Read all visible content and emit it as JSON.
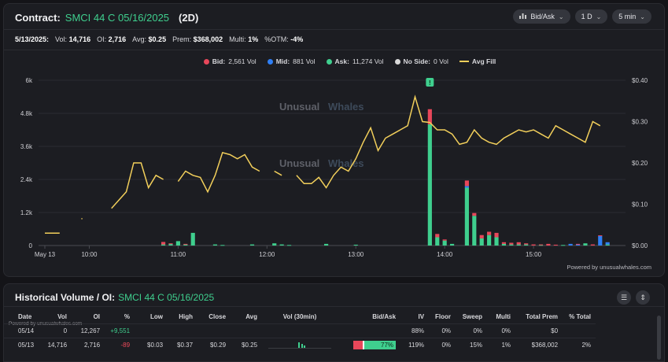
{
  "header": {
    "label": "Contract:",
    "contract": "SMCI 44 C 05/16/2025",
    "span": "(2D)",
    "controls": [
      {
        "label": "Bid/Ask",
        "icon": "bar-chart-icon"
      },
      {
        "label": "1 D",
        "icon": ""
      },
      {
        "label": "5 min",
        "icon": ""
      }
    ]
  },
  "stats": {
    "date": "5/13/2025:",
    "vol_label": "Vol:",
    "vol": "14,716",
    "oi_label": "OI:",
    "oi": "2,716",
    "avg_label": "Avg:",
    "avg": "$0.25",
    "prem_label": "Prem:",
    "prem": "$368,002",
    "multi_label": "Multi:",
    "multi": "1%",
    "otm_label": "%OTM:",
    "otm": "-4%"
  },
  "legend": {
    "bid": "Bid:",
    "bid_val": "2,561 Vol",
    "mid": "Mid:",
    "mid_val": "881 Vol",
    "ask": "Ask:",
    "ask_val": "11,274 Vol",
    "noside": "No Side:",
    "noside_val": "0 Vol",
    "avgfill": "Avg Fill"
  },
  "colors": {
    "bid": "#e8475a",
    "mid": "#2f7ff5",
    "ask": "#3fcf8e",
    "noside": "#d9d9d9",
    "avgfill": "#f2cf5b"
  },
  "watermark": {
    "a": "Unusual",
    "b": "Whales"
  },
  "powered": "Powered by unusualwhales.com",
  "chart_data": {
    "type": "bar",
    "left_axis": {
      "ticks": [
        "6k",
        "4.8k",
        "3.6k",
        "2.4k",
        "1.2k",
        "0"
      ],
      "values": [
        6000,
        4800,
        3600,
        2400,
        1200,
        0
      ]
    },
    "right_axis": {
      "ticks": [
        "$0.40",
        "$0.30",
        "$0.20",
        "$0.10",
        "$0.00"
      ],
      "values": [
        0.4,
        0.3,
        0.2,
        0.1,
        0.0
      ]
    },
    "x_ticks": [
      {
        "label": "May 13",
        "bar": 0
      },
      {
        "label": "10:00",
        "bar": 6
      },
      {
        "label": "11:00",
        "bar": 18
      },
      {
        "label": "12:00",
        "bar": 30
      },
      {
        "label": "13:00",
        "bar": 42
      },
      {
        "label": "14:00",
        "bar": 54
      },
      {
        "label": "15:00",
        "bar": 66
      }
    ],
    "bar_count": 78,
    "bars": [
      {
        "i": 16,
        "ask": 40,
        "bid": 90
      },
      {
        "i": 17,
        "ask": 60,
        "bid": 20
      },
      {
        "i": 18,
        "ask": 160
      },
      {
        "i": 19,
        "ask": 40,
        "bid": 20
      },
      {
        "i": 20,
        "ask": 460
      },
      {
        "i": 23,
        "ask": 40
      },
      {
        "i": 24,
        "ask": 20
      },
      {
        "i": 28,
        "ask": 40
      },
      {
        "i": 31,
        "ask": 80
      },
      {
        "i": 32,
        "ask": 40
      },
      {
        "i": 33,
        "ask": 20
      },
      {
        "i": 38,
        "ask": 60
      },
      {
        "i": 42,
        "ask": 30
      },
      {
        "i": 52,
        "ask": 4400,
        "bid": 550,
        "noside": 0
      },
      {
        "i": 53,
        "ask": 300,
        "bid": 120
      },
      {
        "i": 54,
        "ask": 180,
        "bid": 40
      },
      {
        "i": 55,
        "ask": 60
      },
      {
        "i": 57,
        "ask": 2100,
        "bid": 200,
        "mid": 60
      },
      {
        "i": 58,
        "ask": 1080,
        "bid": 100
      },
      {
        "i": 59,
        "ask": 260,
        "bid": 120
      },
      {
        "i": 60,
        "ask": 380,
        "bid": 120
      },
      {
        "i": 61,
        "ask": 300,
        "bid": 160
      },
      {
        "i": 62,
        "ask": 60,
        "bid": 60
      },
      {
        "i": 63,
        "ask": 40,
        "bid": 60
      },
      {
        "i": 64,
        "ask": 40,
        "bid": 80
      },
      {
        "i": 65,
        "ask": 40,
        "bid": 40
      },
      {
        "i": 66,
        "bid": 40
      },
      {
        "i": 67,
        "ask": 20,
        "bid": 20
      },
      {
        "i": 68,
        "bid": 60
      },
      {
        "i": 69,
        "bid": 30
      },
      {
        "i": 70,
        "ask": 20
      },
      {
        "i": 71,
        "mid": 60
      },
      {
        "i": 72,
        "bid": 20,
        "mid": 40
      },
      {
        "i": 73,
        "ask": 80
      },
      {
        "i": 74,
        "bid": 40
      },
      {
        "i": 75,
        "mid": 350,
        "bid": 20
      },
      {
        "i": 76,
        "mid": 80,
        "ask": 40
      }
    ],
    "avg_fill": [
      [
        0,
        0.03
      ],
      [
        1,
        0.03
      ],
      [
        2,
        0.03
      ],
      [
        9,
        0.09
      ],
      [
        10,
        0.11
      ],
      [
        11,
        0.13
      ],
      [
        12,
        0.2
      ],
      [
        13,
        0.2
      ],
      [
        14,
        0.14
      ],
      [
        15,
        0.17
      ],
      [
        16,
        0.16
      ],
      [
        18,
        0.155
      ],
      [
        19,
        0.18
      ],
      [
        20,
        0.17
      ],
      [
        21,
        0.165
      ],
      [
        22,
        0.13
      ],
      [
        23,
        0.17
      ],
      [
        24,
        0.225
      ],
      [
        25,
        0.22
      ],
      [
        26,
        0.21
      ],
      [
        27,
        0.22
      ],
      [
        28,
        0.19
      ],
      [
        29,
        0.18
      ],
      [
        31,
        0.18
      ],
      [
        32,
        0.17
      ],
      [
        34,
        0.17
      ],
      [
        35,
        0.15
      ],
      [
        36,
        0.15
      ],
      [
        37,
        0.165
      ],
      [
        38,
        0.14
      ],
      [
        39,
        0.17
      ],
      [
        40,
        0.19
      ],
      [
        41,
        0.18
      ],
      [
        42,
        0.21
      ],
      [
        43,
        0.25
      ],
      [
        44,
        0.285
      ],
      [
        45,
        0.23
      ],
      [
        46,
        0.26
      ],
      [
        47,
        0.27
      ],
      [
        48,
        0.28
      ],
      [
        49,
        0.29
      ],
      [
        50,
        0.36
      ],
      [
        51,
        0.3
      ],
      [
        52,
        0.298
      ],
      [
        53,
        0.28
      ],
      [
        54,
        0.28
      ],
      [
        55,
        0.27
      ],
      [
        56,
        0.245
      ],
      [
        57,
        0.25
      ],
      [
        58,
        0.28
      ],
      [
        59,
        0.26
      ],
      [
        60,
        0.25
      ],
      [
        61,
        0.245
      ],
      [
        62,
        0.26
      ],
      [
        63,
        0.27
      ],
      [
        64,
        0.28
      ],
      [
        65,
        0.275
      ],
      [
        66,
        0.28
      ],
      [
        67,
        0.27
      ],
      [
        68,
        0.26
      ],
      [
        69,
        0.29
      ],
      [
        70,
        0.28
      ],
      [
        71,
        0.27
      ],
      [
        72,
        0.26
      ],
      [
        73,
        0.25
      ],
      [
        74,
        0.3
      ],
      [
        75,
        0.29
      ]
    ],
    "marker": {
      "i": 52,
      "label": "!"
    }
  },
  "history": {
    "title": "Historical Volume / OI:",
    "contract": "SMCI 44 C 05/16/2025",
    "watermark": "Powered by unusualwhales.com",
    "columns": [
      "Date",
      "Vol",
      "OI",
      "%",
      "Low",
      "High",
      "Close",
      "Avg",
      "Vol (30min)",
      "Bid/Ask",
      "IV",
      "Floor",
      "Sweep",
      "Multi",
      "Total Prem",
      "% Total"
    ],
    "rows": [
      {
        "date": "05/14",
        "vol": "0",
        "oi": "12,267",
        "pct": "+9,551",
        "low": "",
        "high": "",
        "close": "",
        "avg": "",
        "bidask": "",
        "iv": "88%",
        "floor": "0%",
        "sweep": "0%",
        "multi": "0%",
        "prem": "$0",
        "total": ""
      },
      {
        "date": "05/13",
        "vol": "14,716",
        "oi": "2,716",
        "pct": "-89",
        "low": "$0.03",
        "high": "$0.37",
        "close": "$0.29",
        "avg": "$0.25",
        "bidask": "77%",
        "iv": "119%",
        "floor": "0%",
        "sweep": "15%",
        "multi": "1%",
        "prem": "$368,002",
        "total": "2%"
      }
    ]
  }
}
